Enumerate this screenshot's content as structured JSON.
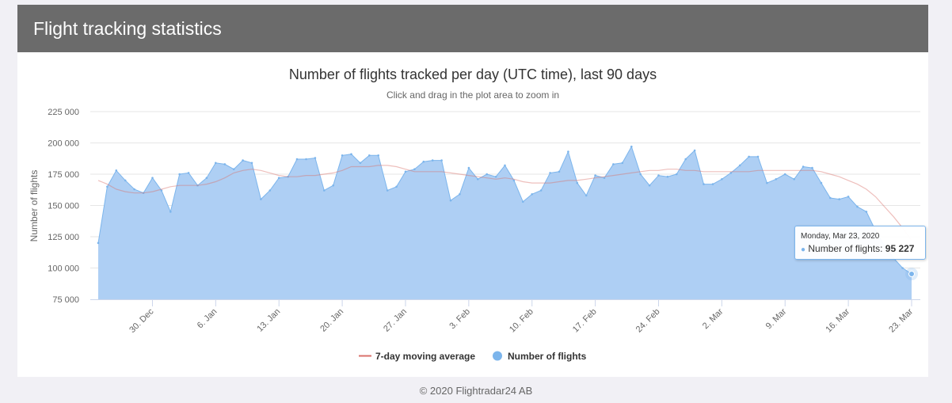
{
  "panel": {
    "title": "Flight tracking statistics"
  },
  "footer": "© 2020 Flightradar24 AB",
  "tooltip": {
    "date": "Monday, Mar 23, 2020",
    "label": "Number of flights: ",
    "value": "95 227"
  },
  "colors": {
    "area_fill": "#aecff4",
    "area_line": "#7cb5ec",
    "moving_average": "#d9706b"
  },
  "chart_data": {
    "type": "area",
    "title": "Number of flights tracked per day (UTC time), last 90 days",
    "subtitle": "Click and drag in the plot area to zoom in",
    "xlabel": "",
    "ylabel": "Number of flights",
    "ylim": [
      75000,
      225000
    ],
    "ytick_values": [
      75000,
      100000,
      125000,
      150000,
      175000,
      200000,
      225000
    ],
    "ytick_labels": [
      "75 000",
      "100 000",
      "125 000",
      "150 000",
      "175 000",
      "200 000",
      "225 000"
    ],
    "x_start": "Dec 24",
    "xtick_day_index": [
      6,
      13,
      20,
      27,
      34,
      41,
      48,
      55,
      62,
      69,
      76,
      83,
      90
    ],
    "xtick_labels": [
      "30. Dec",
      "6. Jan",
      "13. Jan",
      "20. Jan",
      "27. Jan",
      "3. Feb",
      "10. Feb",
      "17. Feb",
      "24. Feb",
      "2. Mar",
      "9. Mar",
      "16. Mar",
      "23. Mar"
    ],
    "legend": [
      "7-day moving average",
      "Number of flights"
    ],
    "series": [
      {
        "name": "Number of flights",
        "values": [
          120000,
          165000,
          178000,
          170000,
          163000,
          160000,
          172000,
          162000,
          145000,
          175000,
          176000,
          166000,
          172000,
          184000,
          183000,
          179000,
          186000,
          184000,
          155000,
          162000,
          172000,
          173000,
          187000,
          187000,
          188000,
          162000,
          166000,
          190000,
          191000,
          184000,
          190000,
          190000,
          162000,
          165000,
          177000,
          179000,
          185000,
          186000,
          186000,
          154000,
          159000,
          180000,
          171000,
          175000,
          173000,
          182000,
          170000,
          153000,
          159000,
          162000,
          176000,
          177000,
          193000,
          168000,
          158000,
          174000,
          172000,
          183000,
          184000,
          197000,
          175000,
          166000,
          174000,
          173000,
          175000,
          187000,
          194000,
          167000,
          167000,
          171000,
          176000,
          182000,
          189000,
          189000,
          168000,
          171000,
          175000,
          171000,
          181000,
          180000,
          168000,
          156000,
          155000,
          157000,
          149000,
          145000,
          130000,
          118000,
          108000,
          100000,
          95227
        ]
      },
      {
        "name": "7-day moving average",
        "values": [
          170000,
          167000,
          163000,
          161000,
          160000,
          160000,
          161000,
          163000,
          165000,
          166000,
          166000,
          166000,
          167000,
          169000,
          172000,
          176000,
          178000,
          179000,
          178000,
          176000,
          174000,
          173000,
          173000,
          174000,
          174000,
          175000,
          176000,
          178000,
          181000,
          181000,
          181000,
          182000,
          182000,
          181000,
          179000,
          177000,
          177000,
          177000,
          177000,
          176000,
          175000,
          174000,
          173000,
          172000,
          171000,
          172000,
          171000,
          169000,
          168000,
          168000,
          168000,
          169000,
          170000,
          170000,
          171000,
          172000,
          173000,
          174000,
          175000,
          176000,
          177000,
          178000,
          178000,
          179000,
          179000,
          178000,
          178000,
          177000,
          177000,
          177000,
          177000,
          177000,
          177000,
          178000,
          178000,
          178000,
          178000,
          178000,
          178000,
          178000,
          177000,
          175000,
          173000,
          170000,
          167000,
          163000,
          157000,
          149000,
          141000,
          132000,
          122000
        ]
      }
    ]
  }
}
